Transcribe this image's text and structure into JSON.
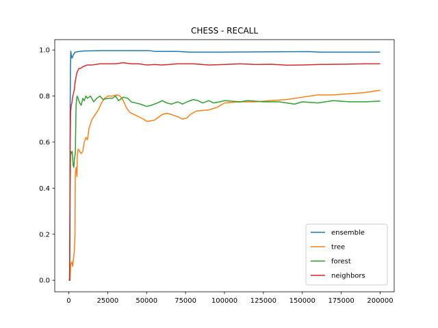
{
  "chart_data": {
    "type": "line",
    "title": "CHESS - RECALL",
    "xlabel": "",
    "ylabel": "",
    "xlim": [
      -9000,
      209000
    ],
    "ylim": [
      -0.05,
      1.045
    ],
    "xticks": [
      0,
      25000,
      50000,
      75000,
      100000,
      125000,
      150000,
      175000,
      200000
    ],
    "xtick_labels": [
      "0",
      "25000",
      "50000",
      "75000",
      "100000",
      "125000",
      "150000",
      "175000",
      "200000"
    ],
    "yticks": [
      0.0,
      0.2,
      0.4,
      0.6,
      0.8,
      1.0
    ],
    "ytick_labels": [
      "0.0",
      "0.2",
      "0.4",
      "0.6",
      "0.8",
      "1.0"
    ],
    "grid": false,
    "legend": "lower-right",
    "series": [
      {
        "name": "ensemble",
        "color": "#1f77b4",
        "points": [
          [
            0,
            0.0
          ],
          [
            500,
            0.0
          ],
          [
            700,
            0.2
          ],
          [
            900,
            0.76
          ],
          [
            1100,
            0.93
          ],
          [
            1300,
            0.995
          ],
          [
            1600,
            0.98
          ],
          [
            2000,
            0.965
          ],
          [
            2500,
            0.97
          ],
          [
            3000,
            0.98
          ],
          [
            4000,
            0.99
          ],
          [
            6000,
            0.993
          ],
          [
            10000,
            0.996
          ],
          [
            20000,
            0.997
          ],
          [
            40000,
            0.997
          ],
          [
            52000,
            0.997
          ],
          [
            55000,
            0.994
          ],
          [
            70000,
            0.994
          ],
          [
            77000,
            0.991
          ],
          [
            100000,
            0.991
          ],
          [
            125000,
            0.992
          ],
          [
            155000,
            0.993
          ],
          [
            160000,
            0.991
          ],
          [
            200000,
            0.991
          ]
        ]
      },
      {
        "name": "tree",
        "color": "#ff7f0e",
        "points": [
          [
            0,
            0.0
          ],
          [
            800,
            0.0
          ],
          [
            1200,
            0.07
          ],
          [
            2000,
            0.08
          ],
          [
            2500,
            0.06
          ],
          [
            3000,
            0.09
          ],
          [
            3500,
            0.12
          ],
          [
            4000,
            0.2
          ],
          [
            4200,
            0.46
          ],
          [
            4700,
            0.49
          ],
          [
            5200,
            0.45
          ],
          [
            5500,
            0.54
          ],
          [
            6000,
            0.57
          ],
          [
            7000,
            0.56
          ],
          [
            8000,
            0.55
          ],
          [
            9000,
            0.56
          ],
          [
            10000,
            0.6
          ],
          [
            11000,
            0.62
          ],
          [
            12000,
            0.61
          ],
          [
            13000,
            0.66
          ],
          [
            14000,
            0.68
          ],
          [
            15000,
            0.7
          ],
          [
            17000,
            0.72
          ],
          [
            19000,
            0.74
          ],
          [
            21000,
            0.77
          ],
          [
            23000,
            0.79
          ],
          [
            25000,
            0.8
          ],
          [
            28000,
            0.8
          ],
          [
            31000,
            0.805
          ],
          [
            33000,
            0.8
          ],
          [
            35000,
            0.78
          ],
          [
            37000,
            0.75
          ],
          [
            39000,
            0.73
          ],
          [
            42000,
            0.72
          ],
          [
            45000,
            0.71
          ],
          [
            48000,
            0.7
          ],
          [
            50000,
            0.69
          ],
          [
            55000,
            0.695
          ],
          [
            58000,
            0.71
          ],
          [
            60000,
            0.72
          ],
          [
            63000,
            0.725
          ],
          [
            66000,
            0.72
          ],
          [
            70000,
            0.71
          ],
          [
            73000,
            0.7
          ],
          [
            76000,
            0.705
          ],
          [
            78000,
            0.72
          ],
          [
            82000,
            0.735
          ],
          [
            90000,
            0.74
          ],
          [
            95000,
            0.75
          ],
          [
            100000,
            0.77
          ],
          [
            110000,
            0.775
          ],
          [
            120000,
            0.775
          ],
          [
            130000,
            0.78
          ],
          [
            140000,
            0.785
          ],
          [
            145000,
            0.79
          ],
          [
            155000,
            0.8
          ],
          [
            160000,
            0.805
          ],
          [
            170000,
            0.805
          ],
          [
            180000,
            0.81
          ],
          [
            190000,
            0.815
          ],
          [
            200000,
            0.825
          ]
        ]
      },
      {
        "name": "forest",
        "color": "#2ca02c",
        "points": [
          [
            0,
            0.0
          ],
          [
            500,
            0.0
          ],
          [
            900,
            0.38
          ],
          [
            1200,
            0.56
          ],
          [
            1700,
            0.55
          ],
          [
            2200,
            0.56
          ],
          [
            2800,
            0.5
          ],
          [
            3200,
            0.49
          ],
          [
            3700,
            0.53
          ],
          [
            4200,
            0.55
          ],
          [
            4700,
            0.76
          ],
          [
            5300,
            0.8
          ],
          [
            6000,
            0.79
          ],
          [
            7000,
            0.77
          ],
          [
            8000,
            0.76
          ],
          [
            9000,
            0.79
          ],
          [
            10000,
            0.78
          ],
          [
            11000,
            0.8
          ],
          [
            12000,
            0.79
          ],
          [
            14000,
            0.8
          ],
          [
            16000,
            0.775
          ],
          [
            18000,
            0.79
          ],
          [
            20000,
            0.8
          ],
          [
            22000,
            0.785
          ],
          [
            25000,
            0.79
          ],
          [
            28000,
            0.79
          ],
          [
            30000,
            0.8
          ],
          [
            32000,
            0.78
          ],
          [
            35000,
            0.795
          ],
          [
            38000,
            0.79
          ],
          [
            40000,
            0.775
          ],
          [
            43000,
            0.77
          ],
          [
            46000,
            0.765
          ],
          [
            50000,
            0.755
          ],
          [
            53000,
            0.76
          ],
          [
            57000,
            0.77
          ],
          [
            60000,
            0.78
          ],
          [
            63000,
            0.77
          ],
          [
            66000,
            0.765
          ],
          [
            70000,
            0.775
          ],
          [
            73000,
            0.765
          ],
          [
            76000,
            0.775
          ],
          [
            80000,
            0.785
          ],
          [
            83000,
            0.78
          ],
          [
            86000,
            0.77
          ],
          [
            90000,
            0.78
          ],
          [
            93000,
            0.77
          ],
          [
            97000,
            0.775
          ],
          [
            100000,
            0.78
          ],
          [
            110000,
            0.775
          ],
          [
            115000,
            0.78
          ],
          [
            125000,
            0.775
          ],
          [
            135000,
            0.775
          ],
          [
            140000,
            0.77
          ],
          [
            145000,
            0.765
          ],
          [
            150000,
            0.775
          ],
          [
            160000,
            0.77
          ],
          [
            170000,
            0.78
          ],
          [
            180000,
            0.775
          ],
          [
            190000,
            0.775
          ],
          [
            200000,
            0.778
          ]
        ]
      },
      {
        "name": "neighbors",
        "color": "#d62728",
        "points": [
          [
            0,
            0.0
          ],
          [
            600,
            0.0
          ],
          [
            900,
            0.6
          ],
          [
            1200,
            0.73
          ],
          [
            1600,
            0.76
          ],
          [
            2000,
            0.77
          ],
          [
            2600,
            0.8
          ],
          [
            3000,
            0.81
          ],
          [
            3600,
            0.83
          ],
          [
            4100,
            0.86
          ],
          [
            4600,
            0.88
          ],
          [
            5200,
            0.9
          ],
          [
            5800,
            0.91
          ],
          [
            6500,
            0.92
          ],
          [
            7500,
            0.92
          ],
          [
            8500,
            0.925
          ],
          [
            10000,
            0.93
          ],
          [
            12000,
            0.935
          ],
          [
            15000,
            0.935
          ],
          [
            20000,
            0.94
          ],
          [
            25000,
            0.94
          ],
          [
            30000,
            0.94
          ],
          [
            35000,
            0.945
          ],
          [
            40000,
            0.94
          ],
          [
            45000,
            0.94
          ],
          [
            50000,
            0.935
          ],
          [
            55000,
            0.937
          ],
          [
            60000,
            0.935
          ],
          [
            70000,
            0.94
          ],
          [
            80000,
            0.94
          ],
          [
            90000,
            0.935
          ],
          [
            100000,
            0.937
          ],
          [
            110000,
            0.94
          ],
          [
            120000,
            0.937
          ],
          [
            130000,
            0.938
          ],
          [
            140000,
            0.934
          ],
          [
            150000,
            0.935
          ],
          [
            160000,
            0.937
          ],
          [
            175000,
            0.938
          ],
          [
            190000,
            0.94
          ],
          [
            200000,
            0.94
          ]
        ]
      }
    ]
  }
}
